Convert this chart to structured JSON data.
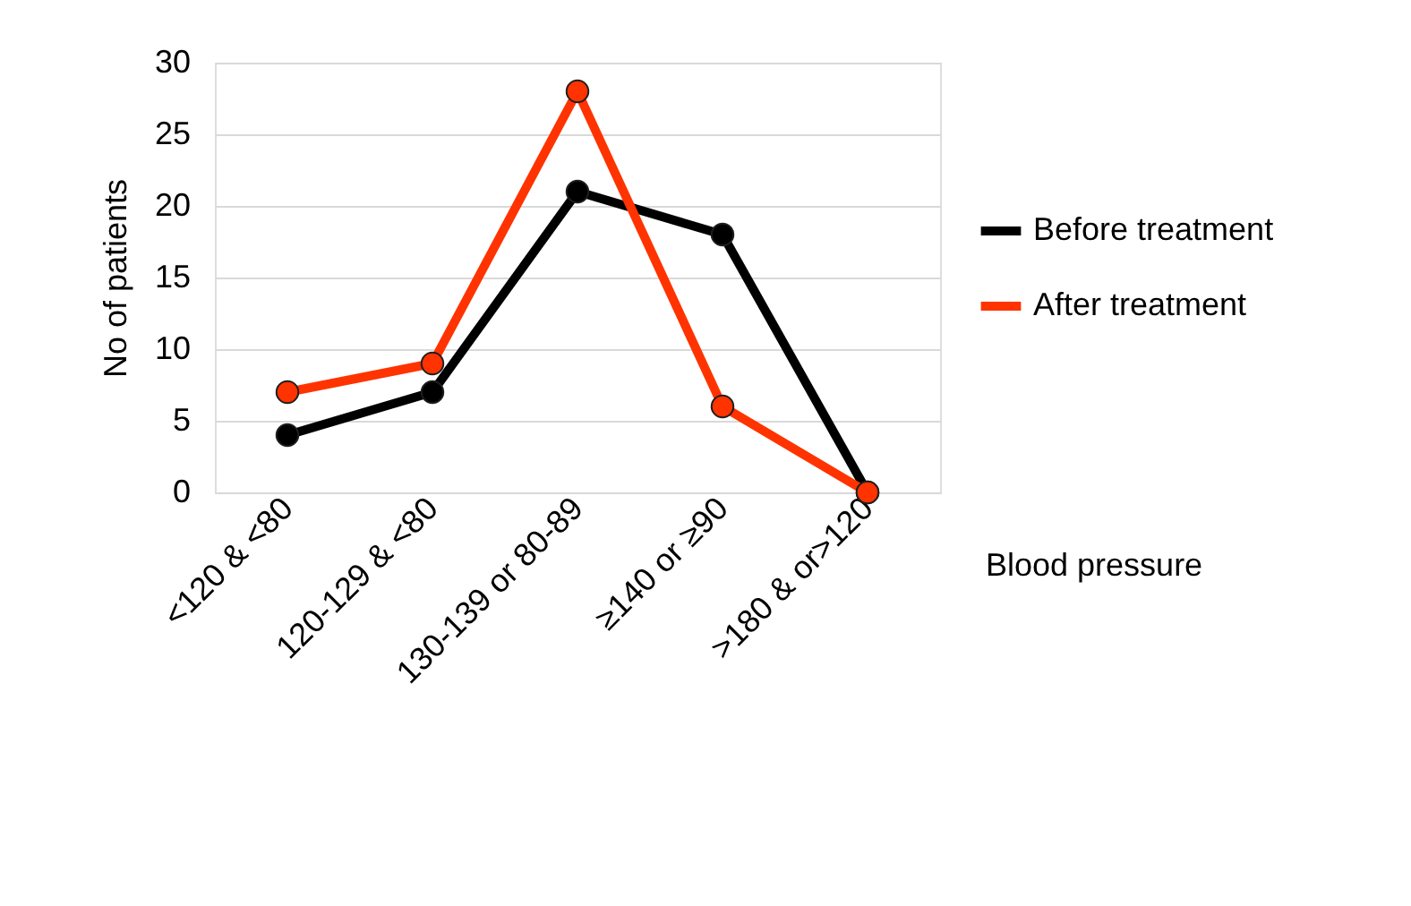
{
  "chart_data": {
    "type": "line",
    "xlabel": "Blood pressure",
    "ylabel": "No of patients",
    "categories": [
      "<120 & <80",
      "120-129 & <80",
      "130-139 or 80-89",
      "≥140 or ≥90",
      ">180 & or>120"
    ],
    "series": [
      {
        "name": "Before treatment",
        "color": "#000000",
        "values": [
          4,
          7,
          21,
          18,
          0
        ]
      },
      {
        "name": "After treatment",
        "color": "#ff3300",
        "values": [
          7,
          9,
          28,
          6,
          0
        ]
      }
    ],
    "ylim": [
      0,
      30
    ],
    "yticks": [
      0,
      5,
      10,
      15,
      20,
      25,
      30
    ],
    "grid": "y",
    "legend": "right",
    "marker": "circle",
    "line_style": "solid"
  }
}
